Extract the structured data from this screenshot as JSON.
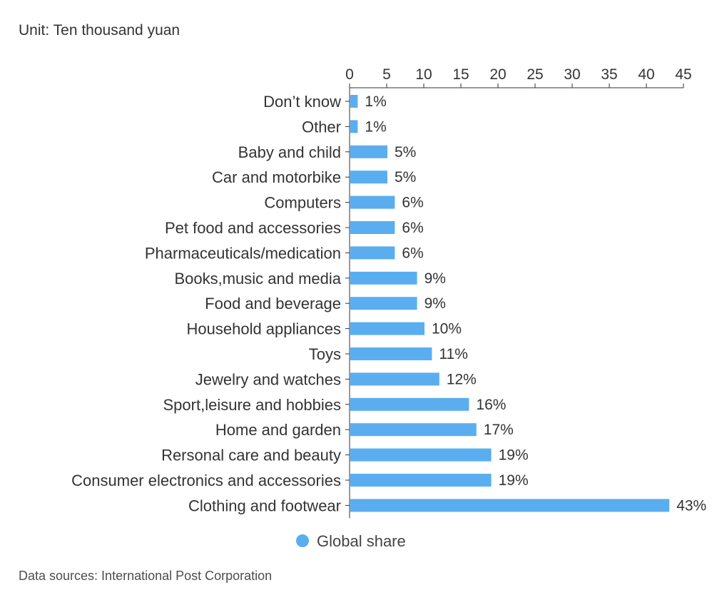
{
  "unit_label": "Unit: Ten thousand yuan",
  "source_label": "Data sources: International Post Corporation",
  "colors": {
    "bar": "#5aaef0",
    "axis": "#333333"
  },
  "chart_data": {
    "type": "bar",
    "orientation": "horizontal",
    "title": "",
    "xlabel": "",
    "ylabel": "",
    "xlim": [
      0,
      45
    ],
    "x_ticks": [
      0,
      5,
      10,
      15,
      20,
      25,
      30,
      35,
      40,
      45
    ],
    "categories": [
      "Don’t know",
      "Other",
      "Baby and child",
      "Car and motorbike",
      "Computers",
      "Pet food and accessories",
      "Pharmaceuticals/medication",
      "Books,music and media",
      "Food and beverage",
      "Household appliances",
      "Toys",
      "Jewelry and watches",
      "Sport,leisure and hobbies",
      "Home and garden",
      "Rersonal care and beauty",
      "Consumer electronics and accessories",
      "Clothing and footwear"
    ],
    "series": [
      {
        "name": "Global share",
        "values": [
          1,
          1,
          5,
          5,
          6,
          6,
          6,
          9,
          9,
          10,
          11,
          12,
          16,
          17,
          19,
          19,
          43
        ],
        "labels": [
          "1%",
          "1%",
          "5%",
          "5%",
          "6%",
          "6%",
          "6%",
          "9%",
          "9%",
          "10%",
          "11%",
          "12%",
          "16%",
          "17%",
          "19%",
          "19%",
          "43%"
        ]
      }
    ],
    "legend": {
      "position": "bottom-center",
      "entries": [
        "Global share"
      ]
    },
    "grid": false
  }
}
